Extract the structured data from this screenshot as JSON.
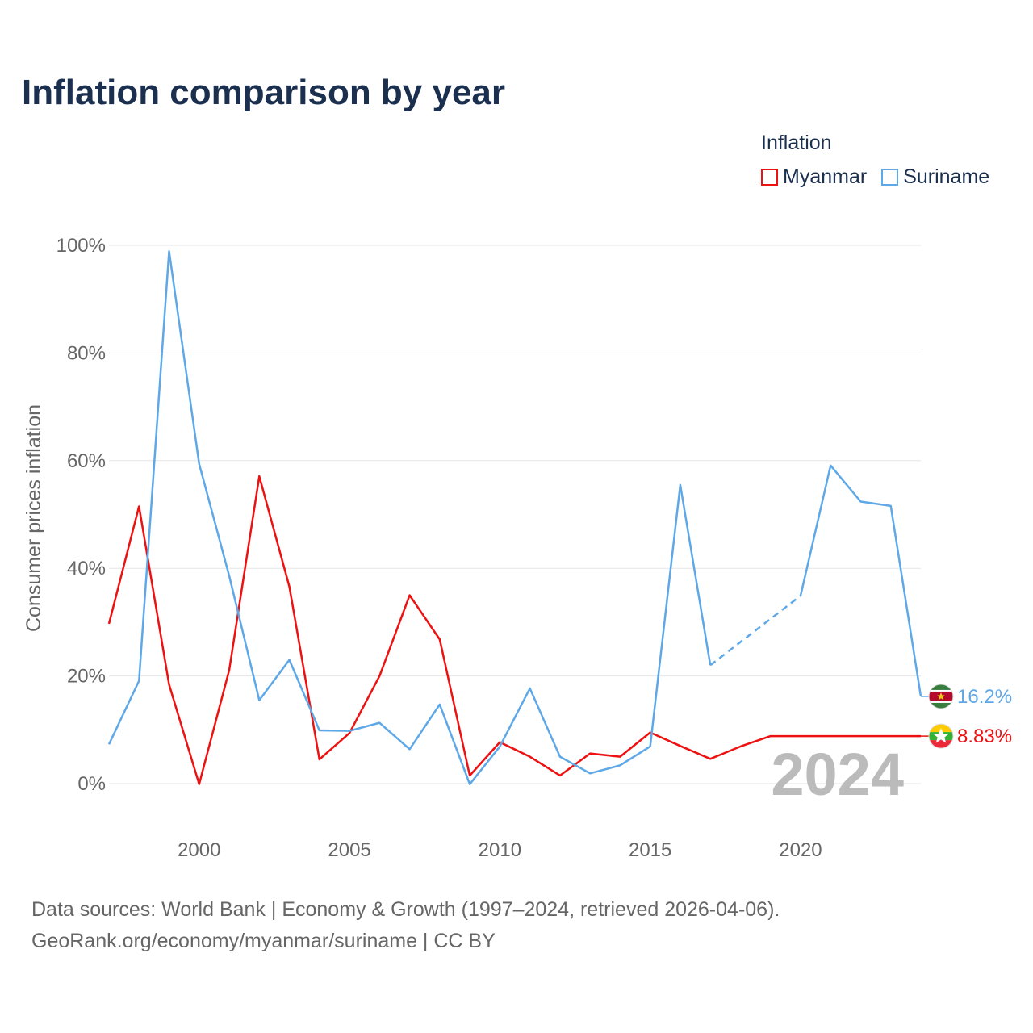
{
  "title": "Inflation comparison by year",
  "legend": {
    "title": "Inflation",
    "items": [
      {
        "label": "Myanmar",
        "color": "#ee1111"
      },
      {
        "label": "Suriname",
        "color": "#5fa8e8"
      }
    ]
  },
  "source": {
    "line1": "Data sources: World Bank | Economy & Growth (1997–2024, retrieved 2026-04-06).",
    "line2": "GeoRank.org/economy/myanmar/suriname | CC BY"
  },
  "chart_data": {
    "type": "line",
    "title": "Inflation comparison by year",
    "ylabel": "Consumer prices inflation",
    "xlabel": "",
    "xlim": [
      1997,
      2024
    ],
    "ylim": [
      -10,
      100
    ],
    "yticks": [
      0,
      20,
      40,
      60,
      80,
      100
    ],
    "ytick_labels": [
      "0%",
      "20%",
      "40%",
      "60%",
      "80%",
      "100%"
    ],
    "xticks": [
      2000,
      2005,
      2010,
      2015,
      2020
    ],
    "xtick_labels": [
      "2000",
      "2005",
      "2010",
      "2015",
      "2020"
    ],
    "year_label": "2024",
    "grid": true,
    "legend_position": "top-right",
    "series": [
      {
        "name": "Myanmar",
        "color": "#ee1111",
        "end_label": "8.83%",
        "flag": "myanmar-flag-icon",
        "points": [
          [
            1997,
            29.7
          ],
          [
            1998,
            51.5
          ],
          [
            1999,
            18.4
          ],
          [
            2000,
            -0.1
          ],
          [
            2001,
            21.1
          ],
          [
            2002,
            57.1
          ],
          [
            2003,
            36.6
          ],
          [
            2004,
            4.5
          ],
          [
            2005,
            9.4
          ],
          [
            2006,
            20.0
          ],
          [
            2007,
            35.0
          ],
          [
            2008,
            26.8
          ],
          [
            2009,
            1.5
          ],
          [
            2010,
            7.7
          ],
          [
            2011,
            5.0
          ],
          [
            2012,
            1.5
          ],
          [
            2013,
            5.6
          ],
          [
            2014,
            5.0
          ],
          [
            2015,
            9.5
          ],
          [
            2016,
            7.0
          ],
          [
            2017,
            4.6
          ],
          [
            2018,
            6.9
          ],
          [
            2019,
            8.83
          ],
          [
            2020,
            8.83
          ],
          [
            2021,
            8.83
          ],
          [
            2022,
            8.83
          ],
          [
            2023,
            8.83
          ],
          [
            2024,
            8.83
          ]
        ],
        "dashed_segments": []
      },
      {
        "name": "Suriname",
        "color": "#5fa8e8",
        "end_label": "16.2%",
        "flag": "suriname-flag-icon",
        "points": [
          [
            1997,
            7.3
          ],
          [
            1998,
            19.1
          ],
          [
            1999,
            98.9
          ],
          [
            2000,
            59.4
          ],
          [
            2001,
            38.6
          ],
          [
            2002,
            15.5
          ],
          [
            2003,
            23.0
          ],
          [
            2004,
            9.9
          ],
          [
            2005,
            9.8
          ],
          [
            2006,
            11.3
          ],
          [
            2007,
            6.4
          ],
          [
            2008,
            14.7
          ],
          [
            2009,
            -0.1
          ],
          [
            2010,
            6.9
          ],
          [
            2011,
            17.7
          ],
          [
            2012,
            5.0
          ],
          [
            2013,
            1.9
          ],
          [
            2014,
            3.4
          ],
          [
            2015,
            6.9
          ],
          [
            2016,
            55.5
          ],
          [
            2017,
            22.0
          ],
          [
            2020,
            34.9
          ],
          [
            2021,
            59.1
          ],
          [
            2022,
            52.4
          ],
          [
            2023,
            51.6
          ],
          [
            2024,
            16.2
          ]
        ],
        "dashed_segments": [
          [
            2017,
            2020
          ]
        ]
      }
    ]
  }
}
